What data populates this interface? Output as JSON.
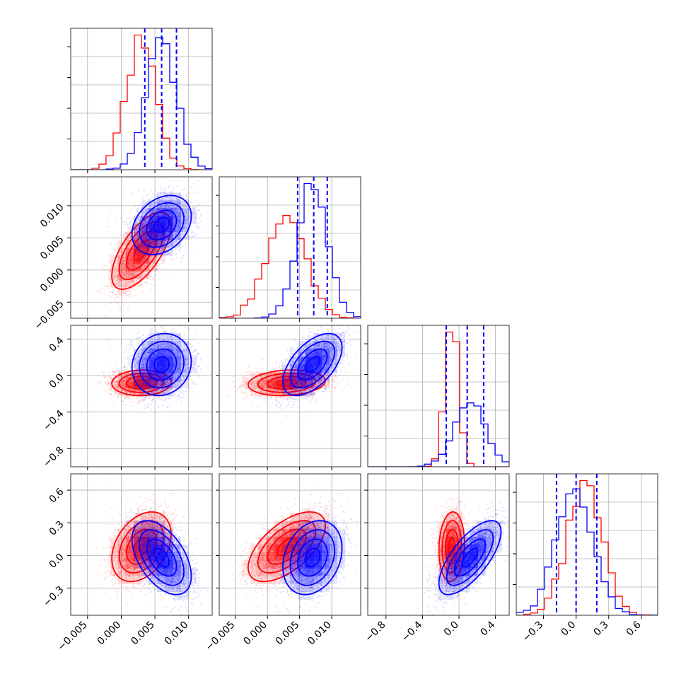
{
  "chart_data": {
    "type": "corner",
    "colors": {
      "red": "#ff0000",
      "blue": "#0000ff",
      "grid": "#b0b0b0"
    },
    "parameters": [
      {
        "range": [
          -0.0075,
          0.0135
        ],
        "ticks": [
          -0.005,
          0.0,
          0.005,
          0.01
        ],
        "tick_labels": [
          "−0.005",
          "0.000",
          "0.005",
          "0.010"
        ]
      },
      {
        "range": [
          -0.0075,
          0.0145
        ],
        "ticks": [
          -0.005,
          0.0,
          0.005,
          0.01
        ],
        "tick_labels": [
          "−0.005",
          "0.000",
          "0.005",
          "0.010"
        ]
      },
      {
        "range": [
          -1.0,
          0.55
        ],
        "ticks": [
          -0.8,
          -0.4,
          0.0,
          0.4
        ],
        "tick_labels": [
          "−0.8",
          "−0.4",
          "0.0",
          "0.4"
        ]
      },
      {
        "range": [
          -0.55,
          0.75
        ],
        "ticks": [
          -0.3,
          0.0,
          0.3,
          0.6
        ],
        "tick_labels": [
          "−0.3",
          "0.0",
          "0.3",
          "0.6"
        ]
      }
    ],
    "series": [
      {
        "color": "red",
        "mean": [
          0.003,
          0.003,
          -0.08,
          0.08
        ],
        "std": [
          0.0022,
          0.003,
          0.07,
          0.16
        ],
        "corr": [
          [
            1,
            0.65,
            0.05,
            0.35
          ],
          [
            0.65,
            1,
            0.15,
            0.6
          ],
          [
            0.05,
            0.15,
            1,
            0.1
          ],
          [
            0.35,
            0.6,
            0.1,
            1
          ]
        ]
      },
      {
        "color": "blue",
        "mean": [
          0.006,
          0.007,
          0.12,
          -0.02
        ],
        "std": [
          0.0022,
          0.0023,
          0.17,
          0.17
        ],
        "corr": [
          [
            1,
            0.3,
            0.1,
            -0.5
          ],
          [
            0.3,
            1,
            0.55,
            0.25
          ],
          [
            0.1,
            0.55,
            1,
            0.7
          ],
          [
            -0.5,
            0.25,
            0.7,
            1
          ]
        ]
      }
    ],
    "quantile_lines": [
      [
        0.0035,
        0.006,
        0.0082
      ],
      [
        0.0047,
        0.0072,
        0.0093
      ],
      [
        -0.14,
        0.09,
        0.27
      ],
      [
        -0.18,
        0.0,
        0.19
      ]
    ],
    "quantile_color": "blue",
    "grid": true
  }
}
